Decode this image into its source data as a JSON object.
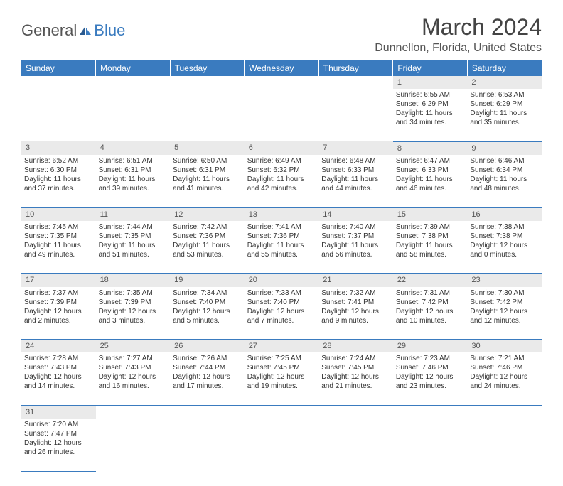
{
  "logo": {
    "general": "General",
    "blue": "Blue"
  },
  "title": "March 2024",
  "location": "Dunnellon, Florida, United States",
  "colors": {
    "header_bg": "#3a7bbf",
    "header_text": "#ffffff",
    "daynum_bg": "#eaeaea",
    "border": "#3a7bbf"
  },
  "fonts": {
    "title_size": 32,
    "location_size": 16,
    "header_size": 12,
    "cell_size": 10
  },
  "days": [
    "Sunday",
    "Monday",
    "Tuesday",
    "Wednesday",
    "Thursday",
    "Friday",
    "Saturday"
  ],
  "weeks": [
    {
      "nums": [
        "",
        "",
        "",
        "",
        "",
        "1",
        "2"
      ],
      "cells": [
        null,
        null,
        null,
        null,
        null,
        {
          "sunrise": "Sunrise: 6:55 AM",
          "sunset": "Sunset: 6:29 PM",
          "day1": "Daylight: 11 hours",
          "day2": "and 34 minutes."
        },
        {
          "sunrise": "Sunrise: 6:53 AM",
          "sunset": "Sunset: 6:29 PM",
          "day1": "Daylight: 11 hours",
          "day2": "and 35 minutes."
        }
      ]
    },
    {
      "nums": [
        "3",
        "4",
        "5",
        "6",
        "7",
        "8",
        "9"
      ],
      "cells": [
        {
          "sunrise": "Sunrise: 6:52 AM",
          "sunset": "Sunset: 6:30 PM",
          "day1": "Daylight: 11 hours",
          "day2": "and 37 minutes."
        },
        {
          "sunrise": "Sunrise: 6:51 AM",
          "sunset": "Sunset: 6:31 PM",
          "day1": "Daylight: 11 hours",
          "day2": "and 39 minutes."
        },
        {
          "sunrise": "Sunrise: 6:50 AM",
          "sunset": "Sunset: 6:31 PM",
          "day1": "Daylight: 11 hours",
          "day2": "and 41 minutes."
        },
        {
          "sunrise": "Sunrise: 6:49 AM",
          "sunset": "Sunset: 6:32 PM",
          "day1": "Daylight: 11 hours",
          "day2": "and 42 minutes."
        },
        {
          "sunrise": "Sunrise: 6:48 AM",
          "sunset": "Sunset: 6:33 PM",
          "day1": "Daylight: 11 hours",
          "day2": "and 44 minutes."
        },
        {
          "sunrise": "Sunrise: 6:47 AM",
          "sunset": "Sunset: 6:33 PM",
          "day1": "Daylight: 11 hours",
          "day2": "and 46 minutes."
        },
        {
          "sunrise": "Sunrise: 6:46 AM",
          "sunset": "Sunset: 6:34 PM",
          "day1": "Daylight: 11 hours",
          "day2": "and 48 minutes."
        }
      ]
    },
    {
      "nums": [
        "10",
        "11",
        "12",
        "13",
        "14",
        "15",
        "16"
      ],
      "cells": [
        {
          "sunrise": "Sunrise: 7:45 AM",
          "sunset": "Sunset: 7:35 PM",
          "day1": "Daylight: 11 hours",
          "day2": "and 49 minutes."
        },
        {
          "sunrise": "Sunrise: 7:44 AM",
          "sunset": "Sunset: 7:35 PM",
          "day1": "Daylight: 11 hours",
          "day2": "and 51 minutes."
        },
        {
          "sunrise": "Sunrise: 7:42 AM",
          "sunset": "Sunset: 7:36 PM",
          "day1": "Daylight: 11 hours",
          "day2": "and 53 minutes."
        },
        {
          "sunrise": "Sunrise: 7:41 AM",
          "sunset": "Sunset: 7:36 PM",
          "day1": "Daylight: 11 hours",
          "day2": "and 55 minutes."
        },
        {
          "sunrise": "Sunrise: 7:40 AM",
          "sunset": "Sunset: 7:37 PM",
          "day1": "Daylight: 11 hours",
          "day2": "and 56 minutes."
        },
        {
          "sunrise": "Sunrise: 7:39 AM",
          "sunset": "Sunset: 7:38 PM",
          "day1": "Daylight: 11 hours",
          "day2": "and 58 minutes."
        },
        {
          "sunrise": "Sunrise: 7:38 AM",
          "sunset": "Sunset: 7:38 PM",
          "day1": "Daylight: 12 hours",
          "day2": "and 0 minutes."
        }
      ]
    },
    {
      "nums": [
        "17",
        "18",
        "19",
        "20",
        "21",
        "22",
        "23"
      ],
      "cells": [
        {
          "sunrise": "Sunrise: 7:37 AM",
          "sunset": "Sunset: 7:39 PM",
          "day1": "Daylight: 12 hours",
          "day2": "and 2 minutes."
        },
        {
          "sunrise": "Sunrise: 7:35 AM",
          "sunset": "Sunset: 7:39 PM",
          "day1": "Daylight: 12 hours",
          "day2": "and 3 minutes."
        },
        {
          "sunrise": "Sunrise: 7:34 AM",
          "sunset": "Sunset: 7:40 PM",
          "day1": "Daylight: 12 hours",
          "day2": "and 5 minutes."
        },
        {
          "sunrise": "Sunrise: 7:33 AM",
          "sunset": "Sunset: 7:40 PM",
          "day1": "Daylight: 12 hours",
          "day2": "and 7 minutes."
        },
        {
          "sunrise": "Sunrise: 7:32 AM",
          "sunset": "Sunset: 7:41 PM",
          "day1": "Daylight: 12 hours",
          "day2": "and 9 minutes."
        },
        {
          "sunrise": "Sunrise: 7:31 AM",
          "sunset": "Sunset: 7:42 PM",
          "day1": "Daylight: 12 hours",
          "day2": "and 10 minutes."
        },
        {
          "sunrise": "Sunrise: 7:30 AM",
          "sunset": "Sunset: 7:42 PM",
          "day1": "Daylight: 12 hours",
          "day2": "and 12 minutes."
        }
      ]
    },
    {
      "nums": [
        "24",
        "25",
        "26",
        "27",
        "28",
        "29",
        "30"
      ],
      "cells": [
        {
          "sunrise": "Sunrise: 7:28 AM",
          "sunset": "Sunset: 7:43 PM",
          "day1": "Daylight: 12 hours",
          "day2": "and 14 minutes."
        },
        {
          "sunrise": "Sunrise: 7:27 AM",
          "sunset": "Sunset: 7:43 PM",
          "day1": "Daylight: 12 hours",
          "day2": "and 16 minutes."
        },
        {
          "sunrise": "Sunrise: 7:26 AM",
          "sunset": "Sunset: 7:44 PM",
          "day1": "Daylight: 12 hours",
          "day2": "and 17 minutes."
        },
        {
          "sunrise": "Sunrise: 7:25 AM",
          "sunset": "Sunset: 7:45 PM",
          "day1": "Daylight: 12 hours",
          "day2": "and 19 minutes."
        },
        {
          "sunrise": "Sunrise: 7:24 AM",
          "sunset": "Sunset: 7:45 PM",
          "day1": "Daylight: 12 hours",
          "day2": "and 21 minutes."
        },
        {
          "sunrise": "Sunrise: 7:23 AM",
          "sunset": "Sunset: 7:46 PM",
          "day1": "Daylight: 12 hours",
          "day2": "and 23 minutes."
        },
        {
          "sunrise": "Sunrise: 7:21 AM",
          "sunset": "Sunset: 7:46 PM",
          "day1": "Daylight: 12 hours",
          "day2": "and 24 minutes."
        }
      ]
    },
    {
      "nums": [
        "31",
        "",
        "",
        "",
        "",
        "",
        ""
      ],
      "cells": [
        {
          "sunrise": "Sunrise: 7:20 AM",
          "sunset": "Sunset: 7:47 PM",
          "day1": "Daylight: 12 hours",
          "day2": "and 26 minutes."
        },
        null,
        null,
        null,
        null,
        null,
        null
      ]
    }
  ]
}
